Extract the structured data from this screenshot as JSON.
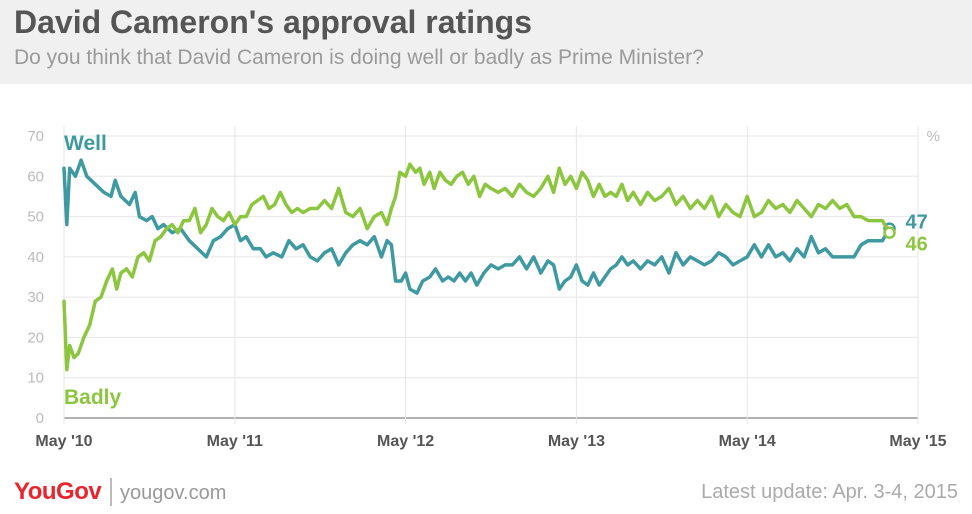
{
  "header": {
    "title": "David Cameron's approval ratings",
    "subtitle": "Do you think that David Cameron is doing well or badly as Prime Minister?"
  },
  "footer": {
    "logo": "YouGov",
    "site": "yougov.com",
    "update": "Latest update: Apr. 3-4, 2015"
  },
  "colors": {
    "well": "#3e9aa0",
    "badly": "#8cc63f"
  },
  "chart_data": {
    "type": "line",
    "title": "David Cameron's approval ratings",
    "ylabel": "%",
    "ylim": [
      0,
      70
    ],
    "yticks": [
      0,
      10,
      20,
      30,
      40,
      50,
      60,
      70
    ],
    "xlim": [
      0,
      59
    ],
    "xticks": [
      {
        "x": 0,
        "label": "May '10"
      },
      {
        "x": 12,
        "label": "May '11"
      },
      {
        "x": 24,
        "label": "May '12"
      },
      {
        "x": 36,
        "label": "May '13"
      },
      {
        "x": 48,
        "label": "May '14"
      },
      {
        "x": 60,
        "label": "May '15"
      }
    ],
    "series": [
      {
        "name": "Well",
        "color": "#3e9aa0",
        "end_label": "47",
        "points": [
          [
            0,
            62
          ],
          [
            0.2,
            48
          ],
          [
            0.4,
            62
          ],
          [
            0.8,
            60
          ],
          [
            1.2,
            64
          ],
          [
            1.6,
            60
          ],
          [
            2.2,
            58
          ],
          [
            2.8,
            56
          ],
          [
            3.3,
            55
          ],
          [
            3.6,
            59
          ],
          [
            4,
            55
          ],
          [
            4.6,
            53
          ],
          [
            5,
            56
          ],
          [
            5.3,
            50
          ],
          [
            5.8,
            49
          ],
          [
            6.2,
            50
          ],
          [
            6.6,
            47
          ],
          [
            7,
            48
          ],
          [
            7.6,
            46
          ],
          [
            8.2,
            47
          ],
          [
            8.8,
            44
          ],
          [
            9.4,
            42
          ],
          [
            10,
            40
          ],
          [
            10.5,
            44
          ],
          [
            11,
            45
          ],
          [
            11.5,
            47
          ],
          [
            12,
            48
          ],
          [
            12.4,
            44
          ],
          [
            12.8,
            45
          ],
          [
            13.3,
            42
          ],
          [
            13.8,
            42
          ],
          [
            14.2,
            40
          ],
          [
            14.7,
            41
          ],
          [
            15.3,
            40
          ],
          [
            15.8,
            44
          ],
          [
            16.3,
            42
          ],
          [
            16.8,
            43
          ],
          [
            17.3,
            40
          ],
          [
            17.8,
            39
          ],
          [
            18.3,
            41
          ],
          [
            18.8,
            42
          ],
          [
            19.3,
            38
          ],
          [
            19.8,
            41
          ],
          [
            20.3,
            43
          ],
          [
            20.8,
            44
          ],
          [
            21.3,
            43
          ],
          [
            21.8,
            45
          ],
          [
            22.3,
            40
          ],
          [
            22.7,
            44
          ],
          [
            23,
            43
          ],
          [
            23.3,
            34
          ],
          [
            23.7,
            34
          ],
          [
            24,
            36
          ],
          [
            24.3,
            32
          ],
          [
            24.8,
            31
          ],
          [
            25.2,
            34
          ],
          [
            25.7,
            35
          ],
          [
            26.1,
            37
          ],
          [
            26.6,
            34
          ],
          [
            27,
            35
          ],
          [
            27.4,
            34
          ],
          [
            27.8,
            36
          ],
          [
            28.2,
            34
          ],
          [
            28.6,
            36
          ],
          [
            29,
            33
          ],
          [
            29.5,
            36
          ],
          [
            30,
            38
          ],
          [
            30.5,
            37
          ],
          [
            31,
            38
          ],
          [
            31.5,
            38
          ],
          [
            32,
            40
          ],
          [
            32.5,
            37
          ],
          [
            33,
            40
          ],
          [
            33.5,
            36
          ],
          [
            34,
            39
          ],
          [
            34.4,
            38
          ],
          [
            34.8,
            32
          ],
          [
            35.2,
            34
          ],
          [
            35.6,
            35
          ],
          [
            36,
            38
          ],
          [
            36.4,
            34
          ],
          [
            36.8,
            33
          ],
          [
            37.2,
            36
          ],
          [
            37.6,
            33
          ],
          [
            38,
            35
          ],
          [
            38.4,
            37
          ],
          [
            38.8,
            38
          ],
          [
            39.2,
            40
          ],
          [
            39.6,
            38
          ],
          [
            40,
            39
          ],
          [
            40.5,
            37
          ],
          [
            41,
            39
          ],
          [
            41.5,
            38
          ],
          [
            42,
            40
          ],
          [
            42.5,
            36
          ],
          [
            43,
            41
          ],
          [
            43.5,
            38
          ],
          [
            44,
            40
          ],
          [
            44.5,
            39
          ],
          [
            45,
            38
          ],
          [
            45.5,
            39
          ],
          [
            46,
            41
          ],
          [
            46.5,
            40
          ],
          [
            47,
            38
          ],
          [
            47.5,
            39
          ],
          [
            48,
            40
          ],
          [
            48.5,
            43
          ],
          [
            49,
            40
          ],
          [
            49.5,
            43
          ],
          [
            50,
            40
          ],
          [
            50.5,
            41
          ],
          [
            51,
            39
          ],
          [
            51.5,
            42
          ],
          [
            52,
            40
          ],
          [
            52.5,
            45
          ],
          [
            53,
            41
          ],
          [
            53.5,
            42
          ],
          [
            54,
            40
          ],
          [
            54.5,
            40
          ],
          [
            55,
            40
          ],
          [
            55.5,
            40
          ],
          [
            56,
            43
          ],
          [
            56.5,
            44
          ],
          [
            57,
            44
          ],
          [
            57.5,
            44
          ],
          [
            58,
            47
          ]
        ]
      },
      {
        "name": "Badly",
        "color": "#8cc63f",
        "end_label": "46",
        "points": [
          [
            0,
            29
          ],
          [
            0.2,
            12
          ],
          [
            0.4,
            18
          ],
          [
            0.7,
            15
          ],
          [
            1,
            16
          ],
          [
            1.4,
            20
          ],
          [
            1.8,
            23
          ],
          [
            2.2,
            29
          ],
          [
            2.6,
            30
          ],
          [
            3,
            34
          ],
          [
            3.4,
            37
          ],
          [
            3.7,
            32
          ],
          [
            4,
            36
          ],
          [
            4.4,
            37
          ],
          [
            4.8,
            35
          ],
          [
            5.2,
            40
          ],
          [
            5.6,
            41
          ],
          [
            6,
            39
          ],
          [
            6.4,
            44
          ],
          [
            6.8,
            45
          ],
          [
            7.2,
            47
          ],
          [
            7.6,
            48
          ],
          [
            8,
            46
          ],
          [
            8.4,
            49
          ],
          [
            8.8,
            49
          ],
          [
            9.2,
            52
          ],
          [
            9.6,
            46
          ],
          [
            10,
            48
          ],
          [
            10.4,
            52
          ],
          [
            10.8,
            50
          ],
          [
            11.2,
            49
          ],
          [
            11.6,
            51
          ],
          [
            12,
            48
          ],
          [
            12.4,
            50
          ],
          [
            12.8,
            50
          ],
          [
            13.2,
            53
          ],
          [
            13.6,
            54
          ],
          [
            14,
            55
          ],
          [
            14.4,
            52
          ],
          [
            14.8,
            53
          ],
          [
            15.2,
            56
          ],
          [
            15.6,
            53
          ],
          [
            16,
            51
          ],
          [
            16.4,
            52
          ],
          [
            16.8,
            51
          ],
          [
            17.3,
            52
          ],
          [
            17.8,
            52
          ],
          [
            18.3,
            54
          ],
          [
            18.8,
            52
          ],
          [
            19.3,
            57
          ],
          [
            19.8,
            51
          ],
          [
            20.3,
            50
          ],
          [
            20.8,
            52
          ],
          [
            21.3,
            47
          ],
          [
            21.8,
            50
          ],
          [
            22.3,
            51
          ],
          [
            22.7,
            48
          ],
          [
            23,
            52
          ],
          [
            23.3,
            55
          ],
          [
            23.6,
            61
          ],
          [
            24,
            60
          ],
          [
            24.3,
            63
          ],
          [
            24.7,
            61
          ],
          [
            25,
            62
          ],
          [
            25.3,
            58
          ],
          [
            25.7,
            61
          ],
          [
            26,
            57
          ],
          [
            26.4,
            61
          ],
          [
            26.8,
            59
          ],
          [
            27.2,
            58
          ],
          [
            27.6,
            60
          ],
          [
            28,
            61
          ],
          [
            28.4,
            58
          ],
          [
            28.8,
            60
          ],
          [
            29.2,
            55
          ],
          [
            29.6,
            58
          ],
          [
            30,
            57
          ],
          [
            30.5,
            56
          ],
          [
            31,
            57
          ],
          [
            31.5,
            55
          ],
          [
            32,
            58
          ],
          [
            32.5,
            56
          ],
          [
            33,
            55
          ],
          [
            33.5,
            57
          ],
          [
            34,
            60
          ],
          [
            34.4,
            56
          ],
          [
            34.8,
            62
          ],
          [
            35.2,
            58
          ],
          [
            35.6,
            60
          ],
          [
            36,
            57
          ],
          [
            36.4,
            61
          ],
          [
            36.8,
            59
          ],
          [
            37.2,
            55
          ],
          [
            37.6,
            58
          ],
          [
            38,
            55
          ],
          [
            38.4,
            56
          ],
          [
            38.8,
            55
          ],
          [
            39.2,
            58
          ],
          [
            39.6,
            54
          ],
          [
            40,
            56
          ],
          [
            40.5,
            53
          ],
          [
            41,
            56
          ],
          [
            41.5,
            54
          ],
          [
            42,
            55
          ],
          [
            42.5,
            57
          ],
          [
            43,
            53
          ],
          [
            43.5,
            55
          ],
          [
            44,
            52
          ],
          [
            44.5,
            54
          ],
          [
            45,
            52
          ],
          [
            45.5,
            55
          ],
          [
            46,
            50
          ],
          [
            46.5,
            53
          ],
          [
            47,
            51
          ],
          [
            47.5,
            50
          ],
          [
            48,
            55
          ],
          [
            48.5,
            50
          ],
          [
            49,
            51
          ],
          [
            49.5,
            54
          ],
          [
            50,
            52
          ],
          [
            50.5,
            53
          ],
          [
            51,
            51
          ],
          [
            51.5,
            54
          ],
          [
            52,
            52
          ],
          [
            52.5,
            50
          ],
          [
            53,
            53
          ],
          [
            53.5,
            52
          ],
          [
            54,
            54
          ],
          [
            54.5,
            52
          ],
          [
            55,
            53
          ],
          [
            55.5,
            50
          ],
          [
            56,
            50
          ],
          [
            56.5,
            49
          ],
          [
            57,
            49
          ],
          [
            57.5,
            49
          ],
          [
            58,
            46
          ]
        ]
      }
    ]
  }
}
